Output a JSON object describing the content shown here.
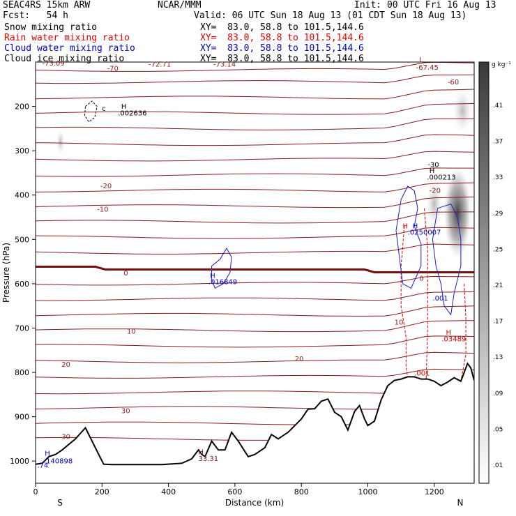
{
  "header": {
    "model": "SEAC4RS 15km ARW",
    "org": "NCAR/MMM",
    "init": "Init: 00 UTC Fri 16 Aug 13",
    "fcst": "Fcst:   54 h",
    "valid": "Valid: 06 UTC Sun 18 Aug 13 (01 CDT Sun 18 Aug 13)",
    "fields": [
      {
        "name": "Snow mixing ratio",
        "xy": "XY=  83.0, 58.8 to 101.5,144.6",
        "color": "#000000"
      },
      {
        "name": "Rain water mixing ratio",
        "xy": "XY=  83.0, 58.8 to 101.5,144.6",
        "color": "#e00000"
      },
      {
        "name": "Cloud water mixing ratio",
        "xy": "XY=  83.0, 58.8 to 101.5,144.6",
        "color": "#0000c8"
      },
      {
        "name": "Cloud ice mixing ratio",
        "xy": "XY=  83.0, 58.8 to 101.5,144.6",
        "color": "#000000"
      }
    ]
  },
  "chart_data": {
    "type": "heatmap",
    "xlabel": "Distance (km)",
    "ylabel": "Pressure (hPa)",
    "xlim": [
      0,
      1320
    ],
    "ylim": [
      1050,
      100
    ],
    "xticks": [
      0,
      200,
      400,
      600,
      800,
      1000,
      1200
    ],
    "yticks": [
      200,
      300,
      400,
      500,
      600,
      700,
      800,
      900,
      1000
    ],
    "endpoints": {
      "left": "S",
      "right": "N"
    },
    "colorbar": {
      "unit": "g kg⁻¹",
      "levels": [
        ".01",
        ".05",
        ".09",
        ".13",
        ".17",
        ".21",
        ".25",
        ".29",
        ".33",
        ".37",
        ".41"
      ]
    },
    "temperature_isotherms": {
      "labels": [
        "-70",
        "-60",
        "-30",
        "-20",
        "-10",
        "0",
        "10",
        "20",
        "30"
      ],
      "color": "#8b1a1a",
      "freezing_level_hpa": 568
    },
    "terrain_pressure": [
      [
        0,
        1007
      ],
      [
        20,
        1005
      ],
      [
        40,
        990
      ],
      [
        60,
        985
      ],
      [
        80,
        975
      ],
      [
        120,
        950
      ],
      [
        150,
        925
      ],
      [
        170,
        955
      ],
      [
        190,
        985
      ],
      [
        205,
        1007
      ],
      [
        230,
        1008
      ],
      [
        300,
        1008
      ],
      [
        380,
        1008
      ],
      [
        440,
        1005
      ],
      [
        470,
        995
      ],
      [
        490,
        975
      ],
      [
        500,
        985
      ],
      [
        510,
        990
      ],
      [
        530,
        955
      ],
      [
        550,
        975
      ],
      [
        570,
        975
      ],
      [
        590,
        935
      ],
      [
        610,
        955
      ],
      [
        640,
        990
      ],
      [
        660,
        985
      ],
      [
        690,
        970
      ],
      [
        710,
        940
      ],
      [
        730,
        950
      ],
      [
        760,
        935
      ],
      [
        780,
        920
      ],
      [
        800,
        905
      ],
      [
        820,
        883
      ],
      [
        840,
        882
      ],
      [
        860,
        865
      ],
      [
        880,
        860
      ],
      [
        900,
        890
      ],
      [
        920,
        900
      ],
      [
        940,
        930
      ],
      [
        960,
        888
      ],
      [
        975,
        875
      ],
      [
        990,
        905
      ],
      [
        1000,
        920
      ],
      [
        1020,
        910
      ],
      [
        1040,
        862
      ],
      [
        1060,
        830
      ],
      [
        1080,
        818
      ],
      [
        1100,
        815
      ],
      [
        1120,
        810
      ],
      [
        1140,
        810
      ],
      [
        1160,
        815
      ],
      [
        1180,
        815
      ],
      [
        1200,
        820
      ],
      [
        1220,
        830
      ],
      [
        1240,
        822
      ],
      [
        1260,
        812
      ],
      [
        1280,
        820
      ],
      [
        1300,
        780
      ],
      [
        1310,
        790
      ],
      [
        1320,
        818
      ]
    ],
    "annotations": [
      {
        "text": "-73.09",
        "x": 20,
        "p": 108,
        "color": "#8b1a1a"
      },
      {
        "text": "-70",
        "x": 215,
        "p": 120,
        "color": "#8b1a1a"
      },
      {
        "text": "-72.71",
        "x": 340,
        "p": 110,
        "color": "#8b1a1a"
      },
      {
        "text": "-73.14",
        "x": 535,
        "p": 110,
        "color": "#8b1a1a"
      },
      {
        "text": "L",
        "x": 1155,
        "p": 100,
        "color": "#8b1a1a"
      },
      {
        "text": "-67.45",
        "x": 1145,
        "p": 117,
        "color": "#8b1a1a"
      },
      {
        "text": "-60",
        "x": 1240,
        "p": 150,
        "color": "#8b1a1a"
      },
      {
        "text": "c",
        "x": 200,
        "p": 210,
        "color": "#000000"
      },
      {
        "text": "H",
        "x": 258,
        "p": 205,
        "color": "#000000"
      },
      {
        "text": ".002636",
        "x": 248,
        "p": 220,
        "color": "#000000"
      },
      {
        "text": "-30",
        "x": 1180,
        "p": 337,
        "color": "#000000"
      },
      {
        "text": "H",
        "x": 1185,
        "p": 350,
        "color": "#000000"
      },
      {
        "text": ".000213",
        "x": 1178,
        "p": 365,
        "color": "#000000"
      },
      {
        "text": "-20",
        "x": 195,
        "p": 385,
        "color": "#8b1a1a"
      },
      {
        "text": "-20",
        "x": 1185,
        "p": 395,
        "color": "#8b1a1a"
      },
      {
        "text": "-10",
        "x": 185,
        "p": 437,
        "color": "#8b1a1a"
      },
      {
        "text": "H",
        "x": 1105,
        "p": 475,
        "color": "#e00000"
      },
      {
        "text": "H",
        "x": 1135,
        "p": 475,
        "color": "#0000c8"
      },
      {
        "text": ".0250007",
        "x": 1120,
        "p": 489,
        "color": "#0000c8"
      },
      {
        "text": "H",
        "x": 525,
        "p": 587,
        "color": "#0000c8"
      },
      {
        "text": ".016849",
        "x": 520,
        "p": 601,
        "color": "#0000c8"
      },
      {
        "text": "0",
        "x": 265,
        "p": 581,
        "color": "#8b1a1a"
      },
      {
        "text": "0",
        "x": 1155,
        "p": 593,
        "color": "#8b1a1a"
      },
      {
        "text": ".001",
        "x": 1195,
        "p": 638,
        "color": "#0000c8"
      },
      {
        "text": "10",
        "x": 275,
        "p": 713,
        "color": "#8b1a1a"
      },
      {
        "text": "10",
        "x": 1080,
        "p": 692,
        "color": "#8b1a1a"
      },
      {
        "text": "H",
        "x": 1235,
        "p": 715,
        "color": "#e00000"
      },
      {
        "text": ".03489",
        "x": 1222,
        "p": 730,
        "color": "#e00000"
      },
      {
        "text": "20",
        "x": 78,
        "p": 787,
        "color": "#8b1a1a"
      },
      {
        "text": "20",
        "x": 780,
        "p": 775,
        "color": "#8b1a1a"
      },
      {
        "text": ".001",
        "x": 1140,
        "p": 807,
        "color": "#e00000"
      },
      {
        "text": "30",
        "x": 258,
        "p": 892,
        "color": "#8b1a1a"
      },
      {
        "text": "30",
        "x": 78,
        "p": 950,
        "color": "#8b1a1a"
      },
      {
        "text": "H",
        "x": 490,
        "p": 985,
        "color": "#8b1a1a"
      },
      {
        "text": "33.31",
        "x": 490,
        "p": 1000,
        "color": "#8b1a1a"
      },
      {
        "text": "H",
        "x": 28,
        "p": 988,
        "color": "#0000c8"
      },
      {
        "text": ".74",
        "x": 5,
        "p": 1015,
        "color": "#0000c8"
      },
      {
        "text": ".140898",
        "x": 25,
        "p": 1005,
        "color": "#0000c8"
      }
    ]
  }
}
